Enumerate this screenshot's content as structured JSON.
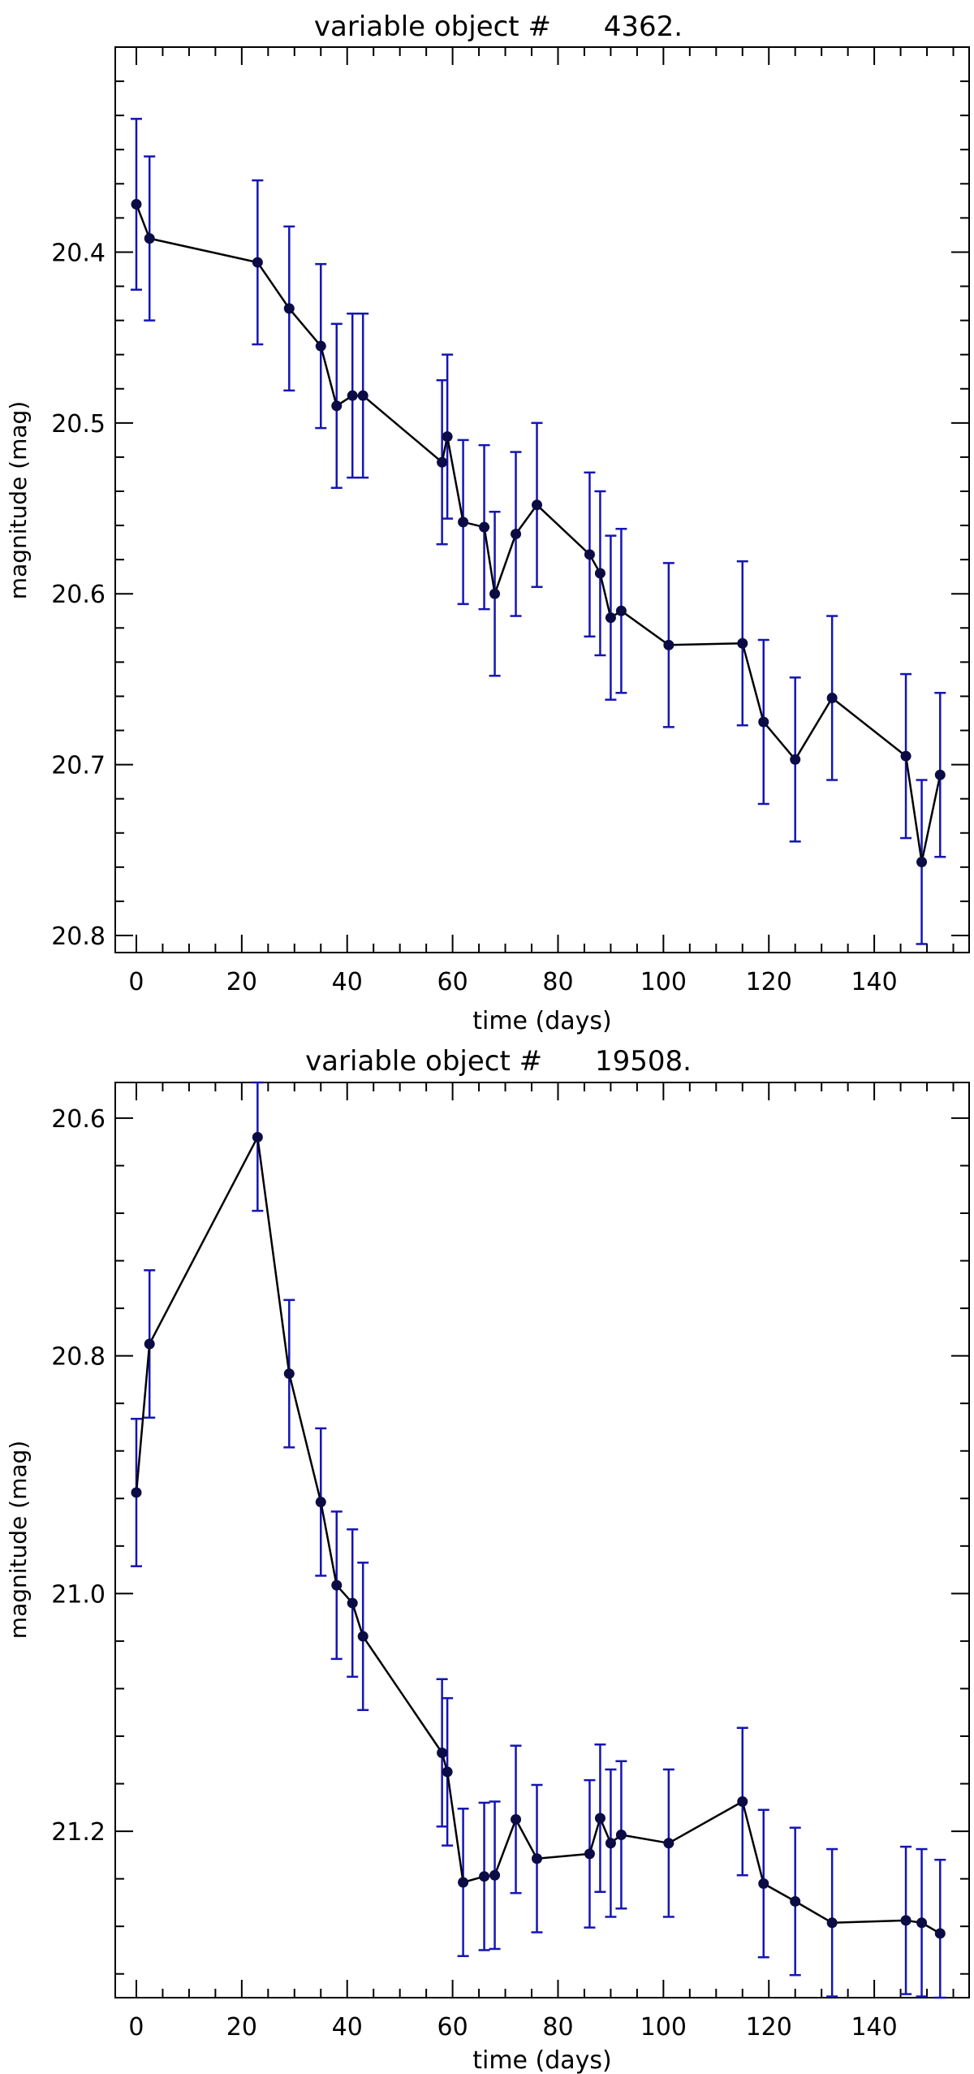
{
  "chart_data": [
    {
      "type": "scatter",
      "title": "variable object #      4362.",
      "xlabel": "time (days)",
      "ylabel": "magnitude (mag)",
      "xlim": [
        -4,
        158
      ],
      "ylim": [
        20.81,
        20.28
      ],
      "y_inverted": true,
      "xticks": [
        0,
        20,
        40,
        60,
        80,
        100,
        120,
        140
      ],
      "yticks": [
        20.4,
        20.5,
        20.6,
        20.7,
        20.8
      ],
      "ytick_labels": [
        "20.4",
        "20.5",
        "20.6",
        "20.7",
        "20.8"
      ],
      "line_color": "#000000",
      "marker_color": "#0b0b45",
      "errorbar_color": "#1515b5",
      "series": [
        {
          "x": [
            0,
            2.5,
            23,
            29,
            35,
            38,
            41,
            43,
            58,
            59,
            62,
            66,
            68,
            72,
            76,
            86,
            88,
            90,
            92,
            101,
            115,
            119,
            125,
            132,
            146,
            149,
            152.5
          ],
          "y": [
            20.372,
            20.392,
            20.406,
            20.433,
            20.455,
            20.49,
            20.484,
            20.484,
            20.523,
            20.508,
            20.558,
            20.561,
            20.6,
            20.565,
            20.548,
            20.577,
            20.588,
            20.614,
            20.61,
            20.63,
            20.629,
            20.675,
            20.697,
            20.661,
            20.695,
            20.757,
            20.706
          ],
          "err": [
            0.05,
            0.048,
            0.048,
            0.048,
            0.048,
            0.048,
            0.048,
            0.048,
            0.048,
            0.048,
            0.048,
            0.048,
            0.048,
            0.048,
            0.048,
            0.048,
            0.048,
            0.048,
            0.048,
            0.048,
            0.048,
            0.048,
            0.048,
            0.048,
            0.048,
            0.048,
            0.048
          ]
        }
      ]
    },
    {
      "type": "scatter",
      "title": "variable object #      19508.",
      "xlabel": "time (days)",
      "ylabel": "magnitude (mag)",
      "xlim": [
        -4,
        158
      ],
      "ylim": [
        21.34,
        20.57
      ],
      "y_inverted": true,
      "xticks": [
        0,
        20,
        40,
        60,
        80,
        100,
        120,
        140
      ],
      "yticks": [
        20.6,
        20.8,
        21.0,
        21.2
      ],
      "ytick_labels": [
        "20.6",
        "20.8",
        "21.0",
        "21.2"
      ],
      "line_color": "#000000",
      "marker_color": "#0b0b45",
      "errorbar_color": "#1515b5",
      "series": [
        {
          "x": [
            0,
            2.5,
            23,
            29,
            35,
            38,
            41,
            43,
            58,
            59,
            62,
            66,
            68,
            72,
            76,
            86,
            88,
            90,
            92,
            101,
            115,
            119,
            125,
            132,
            146,
            149,
            152.5
          ],
          "y": [
            20.915,
            20.79,
            20.616,
            20.815,
            20.923,
            20.993,
            21.008,
            21.036,
            21.134,
            21.15,
            21.243,
            21.238,
            21.237,
            21.19,
            21.223,
            21.219,
            21.189,
            21.21,
            21.203,
            21.21,
            21.175,
            21.244,
            21.259,
            21.277,
            21.275,
            21.277,
            21.286
          ],
          "err": [
            0.062,
            0.062,
            0.062,
            0.062,
            0.062,
            0.062,
            0.062,
            0.062,
            0.062,
            0.062,
            0.062,
            0.062,
            0.062,
            0.062,
            0.062,
            0.062,
            0.062,
            0.062,
            0.062,
            0.062,
            0.062,
            0.062,
            0.062,
            0.062,
            0.062,
            0.062,
            0.062
          ]
        }
      ]
    }
  ]
}
